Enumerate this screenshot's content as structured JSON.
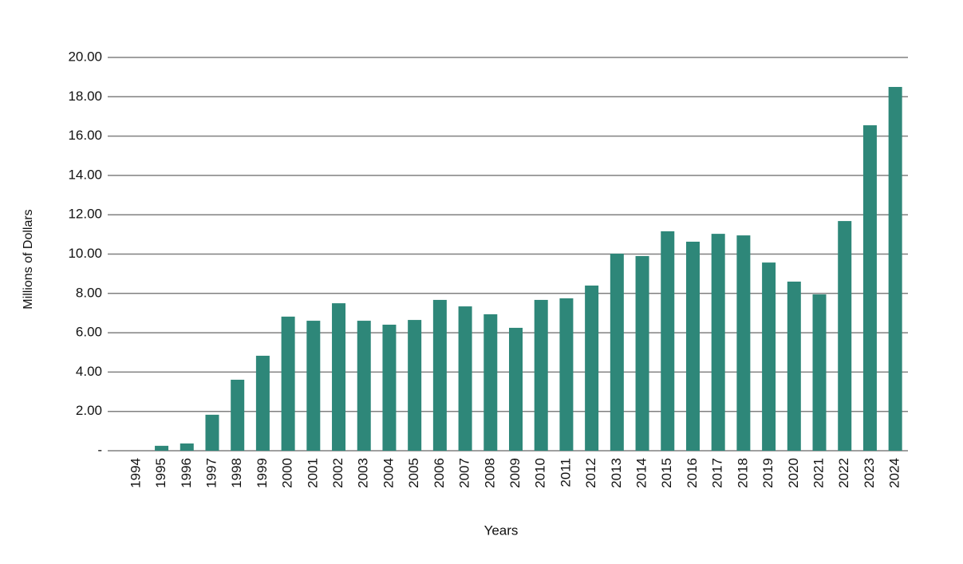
{
  "chart_data": {
    "type": "bar",
    "x_label": "Years",
    "y_label": "Millions of Dollars",
    "categories": [
      "1994",
      "1995",
      "1996",
      "1997",
      "1998",
      "1999",
      "2000",
      "2001",
      "2002",
      "2003",
      "2004",
      "2005",
      "2006",
      "2007",
      "2008",
      "2009",
      "2010",
      "2011",
      "2012",
      "2013",
      "2014",
      "2015",
      "2016",
      "2017",
      "2018",
      "2019",
      "2020",
      "2021",
      "2022",
      "2023",
      "2024"
    ],
    "values": [
      0,
      0.25,
      0.37,
      1.83,
      3.61,
      4.83,
      6.82,
      6.61,
      7.5,
      6.61,
      6.41,
      6.65,
      7.67,
      7.34,
      6.94,
      6.25,
      7.67,
      7.75,
      8.4,
      10.02,
      9.9,
      11.16,
      10.63,
      11.03,
      10.95,
      9.57,
      8.6,
      7.95,
      11.68,
      16.55,
      18.5
    ],
    "color": "#2e8779",
    "ylim": [
      0,
      20
    ],
    "yticks": [
      {
        "value": 0,
        "label": "-"
      },
      {
        "value": 2,
        "label": "2.00"
      },
      {
        "value": 4,
        "label": "4.00"
      },
      {
        "value": 6,
        "label": "6.00"
      },
      {
        "value": 8,
        "label": "8.00"
      },
      {
        "value": 10,
        "label": "10.00"
      },
      {
        "value": 12,
        "label": "12.00"
      },
      {
        "value": 14,
        "label": "14.00"
      },
      {
        "value": 16,
        "label": "16.00"
      },
      {
        "value": 18,
        "label": "18.00"
      },
      {
        "value": 20,
        "label": "20.00"
      }
    ],
    "grid": true
  }
}
